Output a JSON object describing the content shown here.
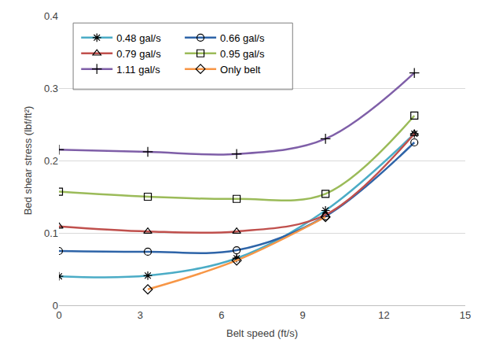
{
  "chart_data": {
    "type": "line",
    "x_label": "Belt speed (ft/s)",
    "y_label": "Bed shear stress (lbf/ft²)",
    "x": [
      0,
      3.28,
      6.56,
      9.84,
      13.12
    ],
    "series": [
      {
        "name": "0.48 gal/s",
        "color": "#4bacc6",
        "marker": "asterisk",
        "line_style": "smooth",
        "values": [
          0.04,
          0.041,
          0.065,
          0.131,
          0.237
        ]
      },
      {
        "name": "0.66 gal/s",
        "color": "#2e64a8",
        "marker": "circle",
        "line_style": "smooth",
        "values": [
          0.075,
          0.074,
          0.076,
          0.123,
          0.225
        ]
      },
      {
        "name": "0.79 gal/s",
        "color": "#c0504d",
        "marker": "triangle",
        "line_style": "smooth",
        "values": [
          0.109,
          0.102,
          0.102,
          0.125,
          0.237
        ]
      },
      {
        "name": "0.95 gal/s",
        "color": "#9bbb59",
        "marker": "square",
        "line_style": "smooth",
        "values": [
          0.157,
          0.15,
          0.147,
          0.154,
          0.262
        ]
      },
      {
        "name": "1.11 gal/s",
        "color": "#7f5fa8",
        "marker": "plus",
        "line_style": "smooth",
        "values": [
          0.215,
          0.212,
          0.209,
          0.23,
          0.321
        ]
      },
      {
        "name": "Only belt",
        "color": "#f79646",
        "marker": "diamond",
        "line_style": "smooth",
        "values": [
          null,
          0.022,
          0.062,
          0.122,
          null
        ]
      }
    ],
    "xlim": [
      0,
      15
    ],
    "xticks": [
      0,
      3,
      6,
      9,
      12,
      15
    ],
    "ylim": [
      0,
      0.4
    ],
    "yticks": [
      0,
      0.1,
      0.2,
      0.3,
      0.4
    ],
    "grid": "y",
    "legend": "upper left"
  }
}
